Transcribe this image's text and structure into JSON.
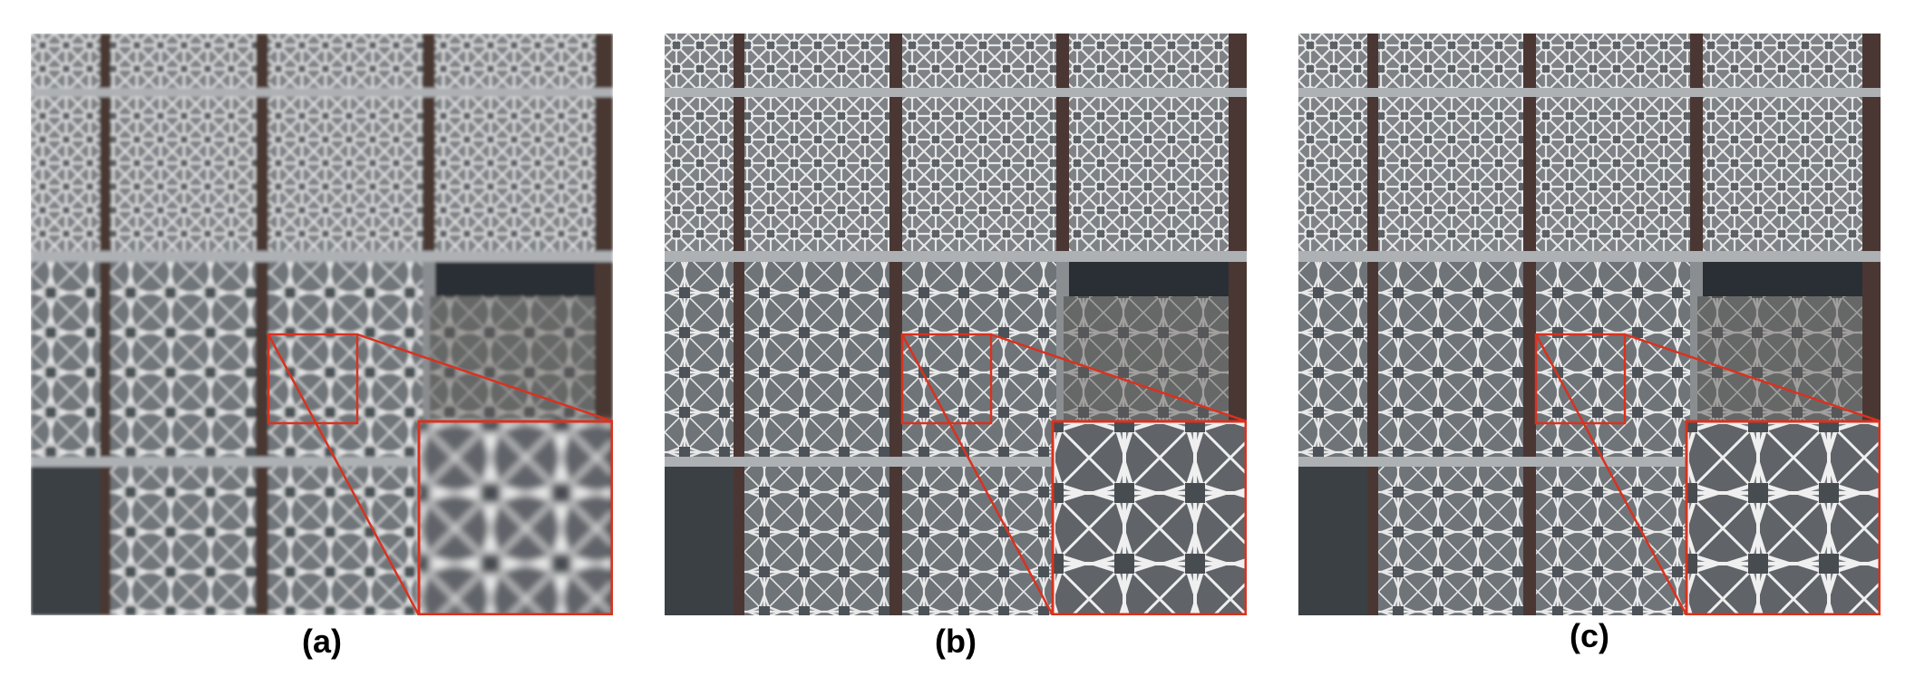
{
  "figure": {
    "panels": [
      {
        "id": "a",
        "caption": "(a)",
        "variant": "blurred"
      },
      {
        "id": "b",
        "caption": "(b)",
        "variant": "sharp"
      },
      {
        "id": "c",
        "caption": "(c)",
        "variant": "sharp-reference"
      }
    ],
    "colors": {
      "zoom_box": "#d9321f",
      "mullion": "#4a3733",
      "panel_bg": "#8b8e91",
      "lattice": "#e4e4e4",
      "window_dark": "#3d4247",
      "caption_text": "#000000"
    },
    "icons": {
      "zoom_region": "rectangle-outline",
      "zoom_inset": "magnified-inset"
    }
  }
}
